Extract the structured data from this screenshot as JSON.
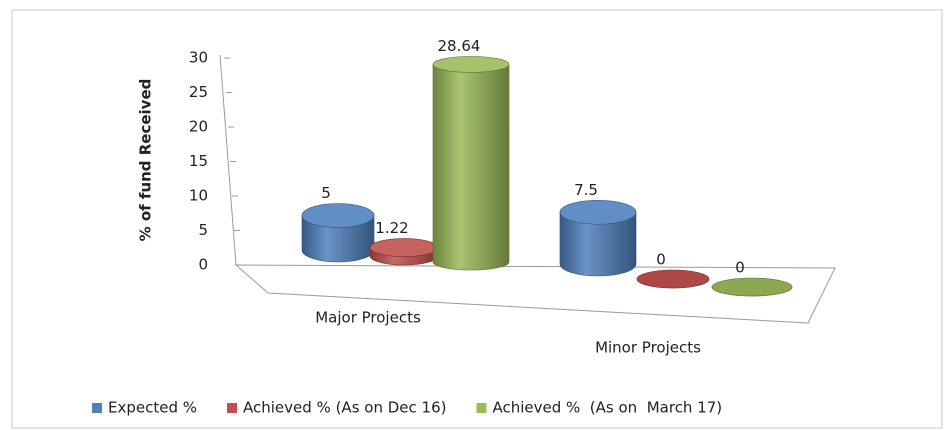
{
  "chart_data": {
    "type": "bar",
    "style": "3d-cylinder",
    "y_label": "% of fund Received",
    "categories": [
      "Major Projects",
      "Minor Projects"
    ],
    "series": [
      {
        "name": "Expected %",
        "color": "#4f81bd",
        "values": [
          5,
          7.5
        ]
      },
      {
        "name": "Achieved % (As on Dec 16)",
        "color": "#c0504d",
        "values": [
          1.22,
          0
        ]
      },
      {
        "name": "Achieved %  (As on  March 17)",
        "color": "#9bbb59",
        "values": [
          28.64,
          0
        ]
      }
    ],
    "ylim": [
      0,
      30
    ],
    "yticks": [
      0,
      5,
      10,
      15,
      20,
      25,
      30
    ],
    "legend": "bottom"
  }
}
